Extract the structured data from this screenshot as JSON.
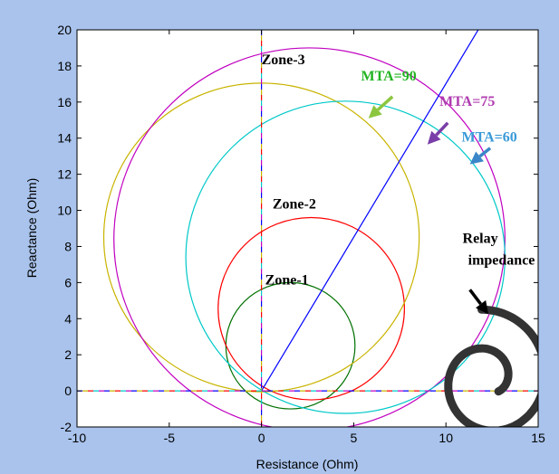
{
  "chart_data": {
    "type": "line",
    "xlabel": "Resistance (Ohm)",
    "ylabel": "Reactance (Ohm)",
    "xlim": [
      -10,
      15
    ],
    "ylim": [
      -2,
      20
    ],
    "xticks": [
      "-10",
      "-5",
      "0",
      "5",
      "10",
      "15"
    ],
    "yticks": [
      "-2",
      "0",
      "2",
      "4",
      "6",
      "8",
      "10",
      "12",
      "14",
      "16",
      "18",
      "20"
    ],
    "grid": false,
    "background": "#ffffff",
    "circles": [
      {
        "name": "Zone-1",
        "center": [
          1.57,
          2.5
        ],
        "radius": 3.5,
        "color": "#007000"
      },
      {
        "name": "Zone-2",
        "center": [
          2.7,
          4.55
        ],
        "radius": 5.05,
        "color": "#ff0000"
      },
      {
        "name": "MTA=90",
        "center": [
          0,
          8.5
        ],
        "radius": 8.55,
        "color": "#c8b400"
      },
      {
        "name": "MTA=75",
        "center": [
          2.6,
          8.4
        ],
        "radius": 10.6,
        "color": "#c000c0"
      },
      {
        "name": "MTA=60",
        "center": [
          4.55,
          7.4
        ],
        "radius": 8.65,
        "color": "#00c8c8"
      }
    ],
    "lines": [
      {
        "name": "impedance-line",
        "x": [
          0,
          11.75
        ],
        "y": [
          0,
          20
        ],
        "color": "#0000ff"
      }
    ],
    "annotations": {
      "zone3": {
        "text": "Zone-3",
        "x": 0,
        "y": 18.1,
        "color": "#000000"
      },
      "zone2": {
        "text": "Zone-2",
        "x": 0.6,
        "y": 10.1,
        "color": "#000000"
      },
      "zone1": {
        "text": "Zone-1",
        "x": 0.2,
        "y": 5.9,
        "color": "#000000"
      },
      "mta90": {
        "text": "MTA=90",
        "x": 5.4,
        "y": 17.2,
        "color": "#22b422"
      },
      "mta75": {
        "text": "MTA=75",
        "x": 9.65,
        "y": 15.8,
        "color": "#b03cb0"
      },
      "mta60": {
        "text": "MTA=60",
        "x": 10.85,
        "y": 13.8,
        "color": "#3a9ad8"
      },
      "relay1": {
        "text": "Relay",
        "x": 10.9,
        "y": 8.2,
        "color": "#000000"
      },
      "relay2": {
        "text": "impedance",
        "x": 11.2,
        "y": 7.0,
        "color": "#000000"
      }
    },
    "arrows": {
      "mta90": {
        "from": [
          7.1,
          16.3
        ],
        "to": [
          5.8,
          15.1
        ],
        "color": "#8cc63f"
      },
      "mta75": {
        "from": [
          10.1,
          14.85
        ],
        "to": [
          9.0,
          13.65
        ],
        "color": "#7a3ea8"
      },
      "mta60": {
        "from": [
          12.4,
          13.45
        ],
        "to": [
          11.3,
          12.55
        ],
        "color": "#3a86c8"
      },
      "relay": {
        "from": [
          11.3,
          5.6
        ],
        "to": [
          12.3,
          4.25
        ],
        "color": "#000000"
      }
    }
  }
}
